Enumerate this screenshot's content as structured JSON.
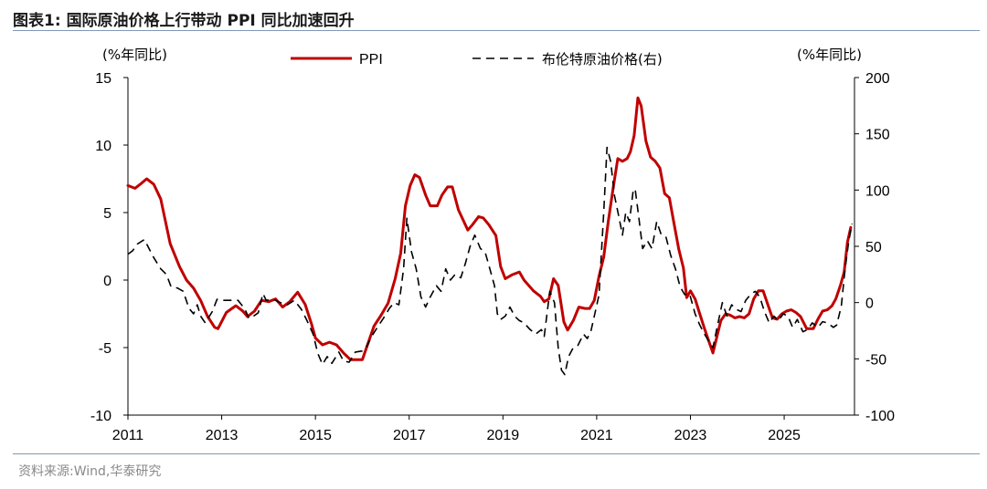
{
  "header": {
    "figure_label": "图表1:",
    "title": "国际原油价格上行带动 PPI 同比加速回升"
  },
  "footer": {
    "source": "资料来源:Wind,华泰研究"
  },
  "chart_data": {
    "type": "line",
    "left_unit": "(%年同比)",
    "right_unit": "(%年同比)",
    "legend_position": "top-center",
    "grid": false,
    "x_axis": {
      "range": [
        2011.0,
        2026.5
      ],
      "tick_labels": [
        "2011",
        "2013",
        "2015",
        "2017",
        "2019",
        "2021",
        "2023",
        "2025"
      ]
    },
    "y_left": {
      "range": [
        -10,
        15
      ],
      "tick_labels": [
        "-10",
        "-5",
        "0",
        "5",
        "10",
        "15"
      ]
    },
    "y_right": {
      "range": [
        -100,
        200
      ],
      "tick_labels": [
        "-100",
        "-50",
        "0",
        "50",
        "100",
        "150",
        "200"
      ]
    },
    "series": [
      {
        "name": "PPI",
        "axis": "left",
        "style": "solid",
        "color": "#c00000",
        "points": [
          [
            2011.0,
            7.0
          ],
          [
            2011.15,
            6.8
          ],
          [
            2011.3,
            7.2
          ],
          [
            2011.4,
            7.5
          ],
          [
            2011.55,
            7.1
          ],
          [
            2011.7,
            6.0
          ],
          [
            2011.9,
            2.7
          ],
          [
            2012.1,
            1.0
          ],
          [
            2012.25,
            0.0
          ],
          [
            2012.4,
            -0.6
          ],
          [
            2012.55,
            -1.5
          ],
          [
            2012.7,
            -2.7
          ],
          [
            2012.85,
            -3.5
          ],
          [
            2012.92,
            -3.6
          ],
          [
            2013.1,
            -2.4
          ],
          [
            2013.3,
            -1.9
          ],
          [
            2013.45,
            -2.3
          ],
          [
            2013.55,
            -2.7
          ],
          [
            2013.7,
            -2.3
          ],
          [
            2013.85,
            -1.5
          ],
          [
            2014.0,
            -1.6
          ],
          [
            2014.15,
            -1.4
          ],
          [
            2014.3,
            -2.0
          ],
          [
            2014.45,
            -1.6
          ],
          [
            2014.62,
            -0.9
          ],
          [
            2014.78,
            -1.8
          ],
          [
            2014.92,
            -3.3
          ],
          [
            2015.0,
            -4.3
          ],
          [
            2015.15,
            -4.8
          ],
          [
            2015.3,
            -4.6
          ],
          [
            2015.45,
            -4.8
          ],
          [
            2015.6,
            -5.4
          ],
          [
            2015.75,
            -5.9
          ],
          [
            2015.9,
            -5.9
          ],
          [
            2016.0,
            -5.9
          ],
          [
            2016.1,
            -4.9
          ],
          [
            2016.25,
            -3.4
          ],
          [
            2016.4,
            -2.6
          ],
          [
            2016.55,
            -1.7
          ],
          [
            2016.7,
            0.1
          ],
          [
            2016.82,
            2.0
          ],
          [
            2016.92,
            5.5
          ],
          [
            2017.02,
            7.0
          ],
          [
            2017.12,
            7.8
          ],
          [
            2017.22,
            7.6
          ],
          [
            2017.35,
            6.3
          ],
          [
            2017.45,
            5.5
          ],
          [
            2017.6,
            5.5
          ],
          [
            2017.7,
            6.3
          ],
          [
            2017.82,
            6.9
          ],
          [
            2017.92,
            6.9
          ],
          [
            2018.05,
            5.2
          ],
          [
            2018.25,
            3.7
          ],
          [
            2018.35,
            4.1
          ],
          [
            2018.48,
            4.7
          ],
          [
            2018.58,
            4.6
          ],
          [
            2018.7,
            4.1
          ],
          [
            2018.85,
            3.3
          ],
          [
            2018.95,
            1.0
          ],
          [
            2019.05,
            0.1
          ],
          [
            2019.2,
            0.4
          ],
          [
            2019.35,
            0.6
          ],
          [
            2019.45,
            0.0
          ],
          [
            2019.65,
            -0.8
          ],
          [
            2019.8,
            -1.2
          ],
          [
            2019.88,
            -1.6
          ],
          [
            2019.98,
            -1.4
          ],
          [
            2020.08,
            0.1
          ],
          [
            2020.18,
            -0.4
          ],
          [
            2020.3,
            -3.1
          ],
          [
            2020.38,
            -3.7
          ],
          [
            2020.5,
            -3.0
          ],
          [
            2020.62,
            -2.0
          ],
          [
            2020.75,
            -2.1
          ],
          [
            2020.85,
            -2.1
          ],
          [
            2020.95,
            -1.5
          ],
          [
            2021.05,
            0.3
          ],
          [
            2021.15,
            1.7
          ],
          [
            2021.25,
            4.4
          ],
          [
            2021.35,
            6.8
          ],
          [
            2021.45,
            9.0
          ],
          [
            2021.55,
            8.8
          ],
          [
            2021.65,
            9.0
          ],
          [
            2021.72,
            9.5
          ],
          [
            2021.8,
            10.7
          ],
          [
            2021.88,
            13.5
          ],
          [
            2021.95,
            12.9
          ],
          [
            2022.05,
            10.3
          ],
          [
            2022.15,
            9.1
          ],
          [
            2022.25,
            8.8
          ],
          [
            2022.35,
            8.3
          ],
          [
            2022.45,
            6.4
          ],
          [
            2022.55,
            6.1
          ],
          [
            2022.65,
            4.2
          ],
          [
            2022.75,
            2.3
          ],
          [
            2022.85,
            0.9
          ],
          [
            2022.92,
            -1.3
          ],
          [
            2023.0,
            -0.8
          ],
          [
            2023.1,
            -1.4
          ],
          [
            2023.2,
            -2.5
          ],
          [
            2023.3,
            -3.6
          ],
          [
            2023.4,
            -4.6
          ],
          [
            2023.48,
            -5.4
          ],
          [
            2023.55,
            -4.4
          ],
          [
            2023.65,
            -3.0
          ],
          [
            2023.75,
            -2.5
          ],
          [
            2023.85,
            -2.6
          ],
          [
            2023.95,
            -2.8
          ],
          [
            2024.05,
            -2.7
          ],
          [
            2024.15,
            -2.8
          ],
          [
            2024.25,
            -2.5
          ],
          [
            2024.35,
            -1.4
          ],
          [
            2024.45,
            -0.8
          ],
          [
            2024.55,
            -0.8
          ],
          [
            2024.65,
            -1.8
          ],
          [
            2024.75,
            -2.8
          ],
          [
            2024.85,
            -2.9
          ],
          [
            2024.95,
            -2.5
          ],
          [
            2025.05,
            -2.3
          ],
          [
            2025.15,
            -2.2
          ],
          [
            2025.25,
            -2.4
          ],
          [
            2025.35,
            -2.7
          ],
          [
            2025.48,
            -3.6
          ],
          [
            2025.62,
            -3.6
          ],
          [
            2025.72,
            -2.9
          ],
          [
            2025.82,
            -2.3
          ],
          [
            2025.92,
            -2.2
          ],
          [
            2026.02,
            -1.9
          ],
          [
            2026.1,
            -1.4
          ],
          [
            2026.2,
            -0.4
          ],
          [
            2026.28,
            0.6
          ],
          [
            2026.35,
            2.8
          ],
          [
            2026.42,
            3.9
          ]
        ]
      },
      {
        "name": "布伦特原油价格(右)",
        "axis": "right",
        "style": "dashed",
        "color": "#000000",
        "points": [
          [
            2011.0,
            43
          ],
          [
            2011.1,
            46
          ],
          [
            2011.2,
            52
          ],
          [
            2011.35,
            56
          ],
          [
            2011.45,
            48
          ],
          [
            2011.55,
            40
          ],
          [
            2011.7,
            30
          ],
          [
            2011.82,
            25
          ],
          [
            2011.92,
            14
          ],
          [
            2012.05,
            13
          ],
          [
            2012.18,
            10
          ],
          [
            2012.3,
            -5
          ],
          [
            2012.4,
            -10
          ],
          [
            2012.48,
            -2
          ],
          [
            2012.55,
            -12
          ],
          [
            2012.65,
            -18
          ],
          [
            2012.8,
            -8
          ],
          [
            2012.9,
            3
          ],
          [
            2013.05,
            2
          ],
          [
            2013.2,
            2
          ],
          [
            2013.35,
            2
          ],
          [
            2013.5,
            -6
          ],
          [
            2013.58,
            -14
          ],
          [
            2013.68,
            -12
          ],
          [
            2013.78,
            -9
          ],
          [
            2013.88,
            8
          ],
          [
            2013.95,
            2
          ],
          [
            2014.1,
            3
          ],
          [
            2014.25,
            0
          ],
          [
            2014.4,
            -2
          ],
          [
            2014.55,
            2
          ],
          [
            2014.7,
            -6
          ],
          [
            2014.82,
            -16
          ],
          [
            2014.95,
            -28
          ],
          [
            2015.05,
            -45
          ],
          [
            2015.15,
            -55
          ],
          [
            2015.25,
            -48
          ],
          [
            2015.35,
            -54
          ],
          [
            2015.5,
            -44
          ],
          [
            2015.6,
            -52
          ],
          [
            2015.72,
            -53
          ],
          [
            2015.85,
            -44
          ],
          [
            2016.0,
            -43
          ],
          [
            2016.08,
            -40
          ],
          [
            2016.2,
            -30
          ],
          [
            2016.32,
            -22
          ],
          [
            2016.45,
            -14
          ],
          [
            2016.58,
            -5
          ],
          [
            2016.68,
            0
          ],
          [
            2016.78,
            -2
          ],
          [
            2016.88,
            30
          ],
          [
            2016.95,
            75
          ],
          [
            2017.05,
            45
          ],
          [
            2017.15,
            30
          ],
          [
            2017.25,
            5
          ],
          [
            2017.35,
            -4
          ],
          [
            2017.45,
            5
          ],
          [
            2017.58,
            15
          ],
          [
            2017.68,
            10
          ],
          [
            2017.78,
            30
          ],
          [
            2017.88,
            20
          ],
          [
            2017.98,
            25
          ],
          [
            2018.1,
            22
          ],
          [
            2018.2,
            35
          ],
          [
            2018.3,
            50
          ],
          [
            2018.4,
            60
          ],
          [
            2018.52,
            48
          ],
          [
            2018.62,
            45
          ],
          [
            2018.72,
            30
          ],
          [
            2018.82,
            15
          ],
          [
            2018.88,
            -10
          ],
          [
            2018.95,
            -15
          ],
          [
            2019.05,
            -12
          ],
          [
            2019.15,
            -4
          ],
          [
            2019.25,
            -12
          ],
          [
            2019.35,
            -16
          ],
          [
            2019.45,
            -18
          ],
          [
            2019.58,
            -24
          ],
          [
            2019.7,
            -28
          ],
          [
            2019.82,
            -24
          ],
          [
            2019.88,
            -30
          ],
          [
            2020.0,
            10
          ],
          [
            2020.1,
            0
          ],
          [
            2020.18,
            -40
          ],
          [
            2020.25,
            -60
          ],
          [
            2020.32,
            -64
          ],
          [
            2020.4,
            -48
          ],
          [
            2020.5,
            -40
          ],
          [
            2020.6,
            -38
          ],
          [
            2020.72,
            -28
          ],
          [
            2020.8,
            -32
          ],
          [
            2020.88,
            -25
          ],
          [
            2020.95,
            -12
          ],
          [
            2021.05,
            7
          ],
          [
            2021.15,
            80
          ],
          [
            2021.22,
            138
          ],
          [
            2021.3,
            125
          ],
          [
            2021.38,
            95
          ],
          [
            2021.48,
            75
          ],
          [
            2021.55,
            60
          ],
          [
            2021.62,
            80
          ],
          [
            2021.7,
            72
          ],
          [
            2021.78,
            100
          ],
          [
            2021.82,
            101
          ],
          [
            2021.9,
            75
          ],
          [
            2021.98,
            48
          ],
          [
            2022.08,
            55
          ],
          [
            2022.18,
            48
          ],
          [
            2022.28,
            72
          ],
          [
            2022.38,
            60
          ],
          [
            2022.48,
            58
          ],
          [
            2022.58,
            42
          ],
          [
            2022.68,
            30
          ],
          [
            2022.78,
            14
          ],
          [
            2022.88,
            7
          ],
          [
            2022.98,
            8
          ],
          [
            2023.1,
            -10
          ],
          [
            2023.2,
            -20
          ],
          [
            2023.3,
            -28
          ],
          [
            2023.4,
            -35
          ],
          [
            2023.48,
            -40
          ],
          [
            2023.58,
            -20
          ],
          [
            2023.68,
            0
          ],
          [
            2023.78,
            -12
          ],
          [
            2023.88,
            -2
          ],
          [
            2023.98,
            -6
          ],
          [
            2024.08,
            -8
          ],
          [
            2024.18,
            2
          ],
          [
            2024.28,
            7
          ],
          [
            2024.38,
            10
          ],
          [
            2024.48,
            5
          ],
          [
            2024.58,
            -8
          ],
          [
            2024.68,
            -18
          ],
          [
            2024.78,
            -12
          ],
          [
            2024.88,
            -16
          ],
          [
            2024.98,
            -10
          ],
          [
            2025.08,
            -12
          ],
          [
            2025.18,
            -22
          ],
          [
            2025.28,
            -15
          ],
          [
            2025.4,
            -26
          ],
          [
            2025.5,
            -24
          ],
          [
            2025.6,
            -18
          ],
          [
            2025.72,
            -22
          ],
          [
            2025.82,
            -17
          ],
          [
            2025.92,
            -18
          ],
          [
            2026.05,
            -22
          ],
          [
            2026.12,
            -20
          ],
          [
            2026.22,
            -3
          ],
          [
            2026.3,
            30
          ],
          [
            2026.38,
            55
          ],
          [
            2026.45,
            70
          ]
        ]
      }
    ]
  }
}
